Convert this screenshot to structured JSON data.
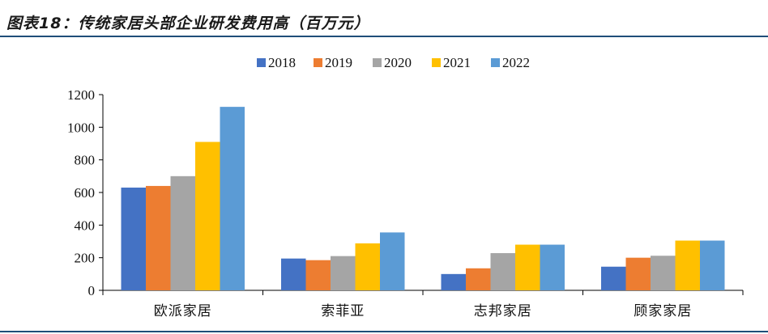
{
  "title": "图表18：传统家居头部企业研发费用高（百万元）",
  "chart_data": {
    "type": "bar",
    "categories": [
      "欧派家居",
      "索菲亚",
      "志邦家居",
      "顾家家居"
    ],
    "series": [
      {
        "name": "2018",
        "color": "#4472c4",
        "values": [
          630,
          195,
          100,
          145
        ]
      },
      {
        "name": "2019",
        "color": "#ed7d31",
        "values": [
          640,
          185,
          135,
          200
        ]
      },
      {
        "name": "2020",
        "color": "#a5a5a5",
        "values": [
          700,
          210,
          228,
          212
        ]
      },
      {
        "name": "2021",
        "color": "#ffc000",
        "values": [
          910,
          288,
          280,
          305
        ]
      },
      {
        "name": "2022",
        "color": "#5b9bd5",
        "values": [
          1125,
          355,
          280,
          305
        ]
      }
    ],
    "ylim": [
      0,
      1200
    ],
    "yticks": [
      "0",
      "200",
      "400",
      "600",
      "800",
      "1000",
      "1200"
    ],
    "grid": false,
    "legend": "top"
  }
}
